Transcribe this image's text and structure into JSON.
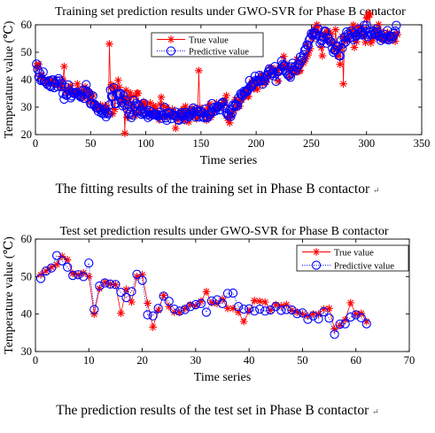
{
  "chart_data": [
    {
      "type": "line",
      "title": "Training set prediction results under GWO-SVR for Phase B contactor",
      "xlabel": "Time series",
      "ylabel": "Temperature value (℃)",
      "xlim": [
        0,
        350
      ],
      "ylim": [
        20,
        60
      ],
      "xticks": [
        "0",
        "50",
        "100",
        "150",
        "200",
        "250",
        "300",
        "350"
      ],
      "yticks": [
        "20",
        "30",
        "40",
        "50",
        "60"
      ],
      "grid": false,
      "legend_position": "top-center",
      "caption": "The fitting results of the training set in Phase B contactor",
      "caption_mark": "↵",
      "series": [
        {
          "name": "True value",
          "color": "#ff0000",
          "marker": "asterisk",
          "line": "solid",
          "values": [
            45.0,
            44.4,
            45.7,
            41.3,
            41.1,
            41.6,
            40.8,
            40.0,
            39.6,
            38.5,
            39.8,
            38.8,
            39.9,
            38.9,
            39.3,
            38.3,
            40.0,
            38.6,
            38.6,
            38.2,
            38.6,
            37.7,
            38.0,
            37.7,
            39.9,
            44.8,
            35.9,
            36.4,
            35.7,
            35.5,
            35.7,
            37.8,
            35.4,
            34.8,
            35.6,
            35.3,
            35.2,
            38.5,
            36.3,
            35.6,
            33.9,
            35.6,
            33.4,
            35.6,
            37.4,
            36.5,
            36.1,
            32.3,
            35.3,
            33.6,
            32.1,
            34.5,
            31.7,
            29.8,
            30.4,
            30.5,
            30.0,
            29.9,
            30.8,
            29.6,
            29.4,
            29.0,
            30.6,
            28.5,
            29.7,
            27.8,
            53.0,
            37.3,
            38.2,
            27.6,
            37.2,
            29.2,
            36.0,
            36.9,
            39.8,
            37.3,
            31.5,
            33.6,
            33.3,
            32.6,
            20.5,
            36.2,
            26.3,
            31.9,
            33.6,
            35.2,
            30.7,
            28.7,
            34.0,
            26.8,
            28.2,
            35.1,
            35.1,
            29.8,
            28.2,
            31.1,
            30.9,
            31.9,
            30.4,
            30.9,
            27.7,
            28.1,
            27.8,
            31.5,
            26.6,
            28.5,
            30.5,
            27.6,
            29.7,
            26.9,
            27.3,
            25.4,
            31.1,
            33.6,
            26.6,
            30.5,
            26.8,
            26.5,
            29.9,
            28.9,
            27.0,
            27.0,
            27.2,
            29.2,
            28.1,
            27.6,
            22.3,
            27.1,
            25.3,
            26.4,
            27.5,
            28.5,
            26.6,
            29.3,
            25.1,
            30.3,
            26.4,
            28.1,
            24.6,
            28.7,
            26.5,
            29.6,
            28.7,
            29.4,
            28.1,
            25.7,
            26.4,
            43.3,
            29.9,
            27.9,
            27.9,
            27.4,
            27.2,
            28.4,
            25.2,
            29.7,
            26.5,
            31.2,
            26.3,
            27.2,
            28.2,
            28.6,
            29.3,
            31.5,
            29.7,
            30.5,
            30.5,
            29.9,
            30.6,
            31.7,
            31.3,
            32.6,
            34.2,
            26.0,
            25.2,
            24.3,
            26.6,
            27.0,
            28.9,
            28.7,
            32.7,
            30.0,
            32.4,
            31.0,
            30.3,
            32.7,
            32.6,
            35.1,
            34.8,
            34.7,
            36.0,
            34.0,
            33.9,
            37.7,
            36.7,
            39.2,
            39.7,
            36.7,
            39.0,
            37.0,
            36.5,
            40.1,
            40.0,
            39.3,
            41.8,
            38.5,
            40.3,
            39.4,
            39.1,
            41.6,
            41.0,
            42.3,
            44.2,
            44.4,
            43.5,
            42.3,
            43.7,
            42.0,
            43.5,
            39.5,
            44.4,
            44.6,
            44.1,
            45.2,
            48.5,
            44.5,
            45.0,
            45.6,
            43.8,
            41.0,
            43.4,
            44.1,
            43.9,
            44.2,
            42.5,
            44.0,
            47.4,
            43.1,
            43.1,
            43.4,
            45.6,
            46.5,
            46.1,
            47.6,
            47.5,
            52.9,
            49.0,
            50.5,
            51.3,
            57.0,
            54.8,
            57.5,
            58.2,
            59.3,
            60.0,
            59.4,
            57.0,
            56.4,
            51.7,
            48.7,
            56.4,
            56.3,
            55.4,
            57.4,
            57.8,
            56.8,
            53.5,
            56.7,
            53.3,
            52.3,
            50.8,
            58.2,
            52.0,
            48.6,
            50.7,
            45.6,
            51.5,
            55.7,
            38.5,
            54.9,
            54.3,
            54.6,
            54.5,
            55.4,
            58.0,
            57.1,
            57.8,
            59.9,
            51.8,
            56.8,
            53.8,
            59.2,
            56.8,
            56.4,
            59.2,
            56.2,
            58.5,
            56.1,
            53.6,
            62.5,
            62.8,
            64.3,
            63.6,
            53.4,
            55.0,
            54.8,
            58.6,
            57.4,
            55.9,
            57.8,
            60.1,
            56.2,
            57.6,
            54.6,
            54.6,
            55.8,
            54.7,
            56.4,
            57.2,
            54.6,
            56.4,
            55.4,
            55.5,
            55.4,
            55.9,
            54.0,
            56.9,
            56.4
          ]
        },
        {
          "name": "Predictive value",
          "color": "#0000ff",
          "marker": "circle",
          "line": "dotted",
          "values": [
            45.7,
            43.7,
            41.0,
            42.4,
            39.7,
            40.0,
            42.8,
            39.4,
            39.4,
            38.7,
            38.2,
            39.6,
            37.8,
            37.4,
            39.9,
            39.9,
            37.1,
            38.6,
            39.6,
            37.5,
            40.4,
            39.6,
            37.6,
            38.6,
            34.9,
            32.9,
            37.3,
            34.3,
            34.6,
            38.1,
            36.0,
            33.4,
            34.1,
            35.3,
            35.0,
            34.8,
            35.4,
            35.2,
            34.6,
            34.1,
            33.7,
            33.9,
            36.2,
            33.2,
            36.1,
            38.2,
            35.6,
            35.3,
            34.4,
            31.2,
            31.1,
            34.1,
            30.8,
            30.9,
            29.8,
            29.6,
            28.5,
            29.7,
            29.0,
            27.8,
            28.5,
            27.6,
            29.2,
            26.5,
            27.9,
            27.5,
            30.8,
            36.2,
            33.9,
            34.0,
            37.1,
            31.3,
            31.3,
            34.8,
            34.4,
            34.8,
            35.0,
            31.7,
            30.5,
            34.2,
            30.8,
            32.5,
            29.4,
            30.9,
            27.5,
            28.2,
            26.2,
            27.1,
            32.5,
            30.3,
            31.3,
            28.6,
            30.9,
            30.4,
            28.5,
            27.4,
            27.9,
            31.4,
            27.8,
            28.3,
            27.2,
            26.2,
            28.7,
            26.8,
            28.3,
            27.3,
            27.3,
            27.3,
            27.3,
            27.1,
            26.7,
            27.2,
            28.2,
            25.9,
            27.0,
            27.0,
            29.9,
            26.1,
            25.2,
            28.0,
            27.7,
            27.8,
            25.8,
            27.1,
            27.3,
            26.8,
            28.2,
            26.6,
            25.4,
            25.2,
            27.4,
            28.0,
            27.5,
            26.7,
            25.6,
            28.1,
            26.8,
            27.4,
            26.4,
            27.0,
            28.6,
            27.6,
            29.7,
            28.3,
            26.4,
            29.1,
            28.4,
            26.4,
            28.3,
            28.6,
            27.8,
            26.3,
            26.2,
            29.3,
            26.2,
            26.2,
            27.3,
            27.4,
            28.2,
            31.3,
            28.3,
            29.9,
            28.6,
            29.7,
            30.3,
            30.2,
            29.0,
            31.1,
            31.5,
            31.8,
            30.0,
            29.6,
            27.9,
            27.3,
            26.9,
            29.0,
            26.6,
            27.7,
            30.8,
            30.3,
            31.0,
            30.8,
            30.4,
            33.4,
            32.7,
            34.9,
            34.6,
            34.2,
            35.8,
            35.3,
            36.0,
            35.8,
            36.6,
            39.7,
            37.6,
            37.4,
            38.4,
            38.9,
            41.3,
            39.8,
            39.5,
            39.4,
            41.6,
            39.5,
            41.0,
            38.4,
            40.2,
            39.6,
            41.3,
            41.8,
            42.9,
            44.0,
            43.5,
            42.4,
            42.2,
            41.4,
            44.8,
            39.4,
            42.9,
            42.9,
            43.1,
            43.8,
            46.7,
            45.6,
            45.1,
            45.0,
            43.3,
            42.2,
            41.6,
            41.5,
            40.9,
            44.7,
            46.0,
            43.6,
            44.8,
            43.3,
            44.3,
            45.4,
            45.7,
            48.3,
            47.1,
            47.8,
            49.1,
            50.8,
            51.1,
            52.7,
            52.4,
            54.4,
            55.1,
            56.8,
            56.2,
            57.2,
            57.1,
            56.7,
            56.3,
            58.5,
            55.9,
            53.3,
            54.1,
            54.4,
            55.5,
            57.8,
            57.5,
            53.3,
            55.3,
            54.8,
            53.9,
            53.8,
            51.5,
            50.0,
            50.7,
            50.8,
            52.3,
            52.1,
            48.8,
            48.6,
            54.3,
            51.5,
            53.1,
            55.5,
            53.7,
            57.4,
            56.6,
            56.1,
            55.3,
            57.8,
            55.5,
            54.6,
            57.0,
            55.9,
            56.0,
            56.6,
            58.4,
            57.1,
            57.5,
            56.3,
            56.6,
            59.8,
            58.6,
            59.8,
            55.6,
            56.3,
            57.3,
            56.5,
            56.5,
            57.8,
            56.6,
            57.3,
            58.4,
            57.4,
            55.8,
            56.0,
            54.3,
            55.3,
            55.2,
            55.1,
            56.5,
            54.8,
            57.9,
            54.5,
            55.9,
            55.7,
            54.9,
            55.8,
            56.8,
            57.7,
            59.8
          ]
        }
      ]
    },
    {
      "type": "line",
      "title": "Test set prediction results under GWO-SVR for Phase B contactor",
      "xlabel": "Time series",
      "ylabel": "Temperature value (℃)",
      "xlim": [
        0,
        70
      ],
      "ylim": [
        30,
        60
      ],
      "xticks": [
        "0",
        "10",
        "20",
        "30",
        "40",
        "50",
        "60",
        "70"
      ],
      "yticks": [
        "30",
        "40",
        "50",
        "60"
      ],
      "grid": false,
      "legend_position": "top-right",
      "caption": "The prediction results of the test set in Phase B contactor",
      "caption_mark": "↵",
      "series": [
        {
          "name": "True value",
          "color": "#ff0000",
          "marker": "asterisk",
          "line": "solid",
          "values": [
            50.5,
            51.5,
            52.5,
            53.2,
            55.4,
            54.5,
            50.8,
            50.5,
            51.0,
            50.0,
            40.0,
            46.8,
            48.5,
            48.0,
            47.8,
            40.2,
            46.6,
            43.2,
            50.0,
            50.5,
            42.9,
            36.5,
            41.0,
            45.0,
            42.0,
            40.5,
            40.4,
            41.5,
            42.5,
            42.2,
            43.4,
            46.0,
            43.0,
            42.8,
            44.0,
            41.5,
            41.5,
            40.5,
            38.0,
            40.8,
            43.6,
            43.4,
            43.2,
            41.0,
            42.5,
            42.2,
            42.5,
            41.0,
            40.5,
            40.0,
            39.5,
            40.0,
            40.0,
            41.3,
            41.5,
            36.0,
            37.0,
            38.5,
            43.0,
            40.0,
            40.2,
            38.0
          ]
        },
        {
          "name": "Predictive value",
          "color": "#0000ff",
          "marker": "circle",
          "line": "dotted",
          "values": [
            49.5,
            51.5,
            52.3,
            55.6,
            54.2,
            52.5,
            50.3,
            50.5,
            50.0,
            53.6,
            41.2,
            47.5,
            48.3,
            48.0,
            47.9,
            45.8,
            44.4,
            46.0,
            50.6,
            49.0,
            39.8,
            39.5,
            41.5,
            44.8,
            43.4,
            41.3,
            40.8,
            41.2,
            42.0,
            42.5,
            42.8,
            40.5,
            43.5,
            43.8,
            42.8,
            45.5,
            45.6,
            42.0,
            41.3,
            41.4,
            40.8,
            41.3,
            40.8,
            41.1,
            42.0,
            41.0,
            41.2,
            41.1,
            40.1,
            40.3,
            38.6,
            39.5,
            38.7,
            40.6,
            38.9,
            34.6,
            37.3,
            37.4,
            39.2,
            39.8,
            39.0,
            37.4
          ]
        }
      ]
    }
  ]
}
